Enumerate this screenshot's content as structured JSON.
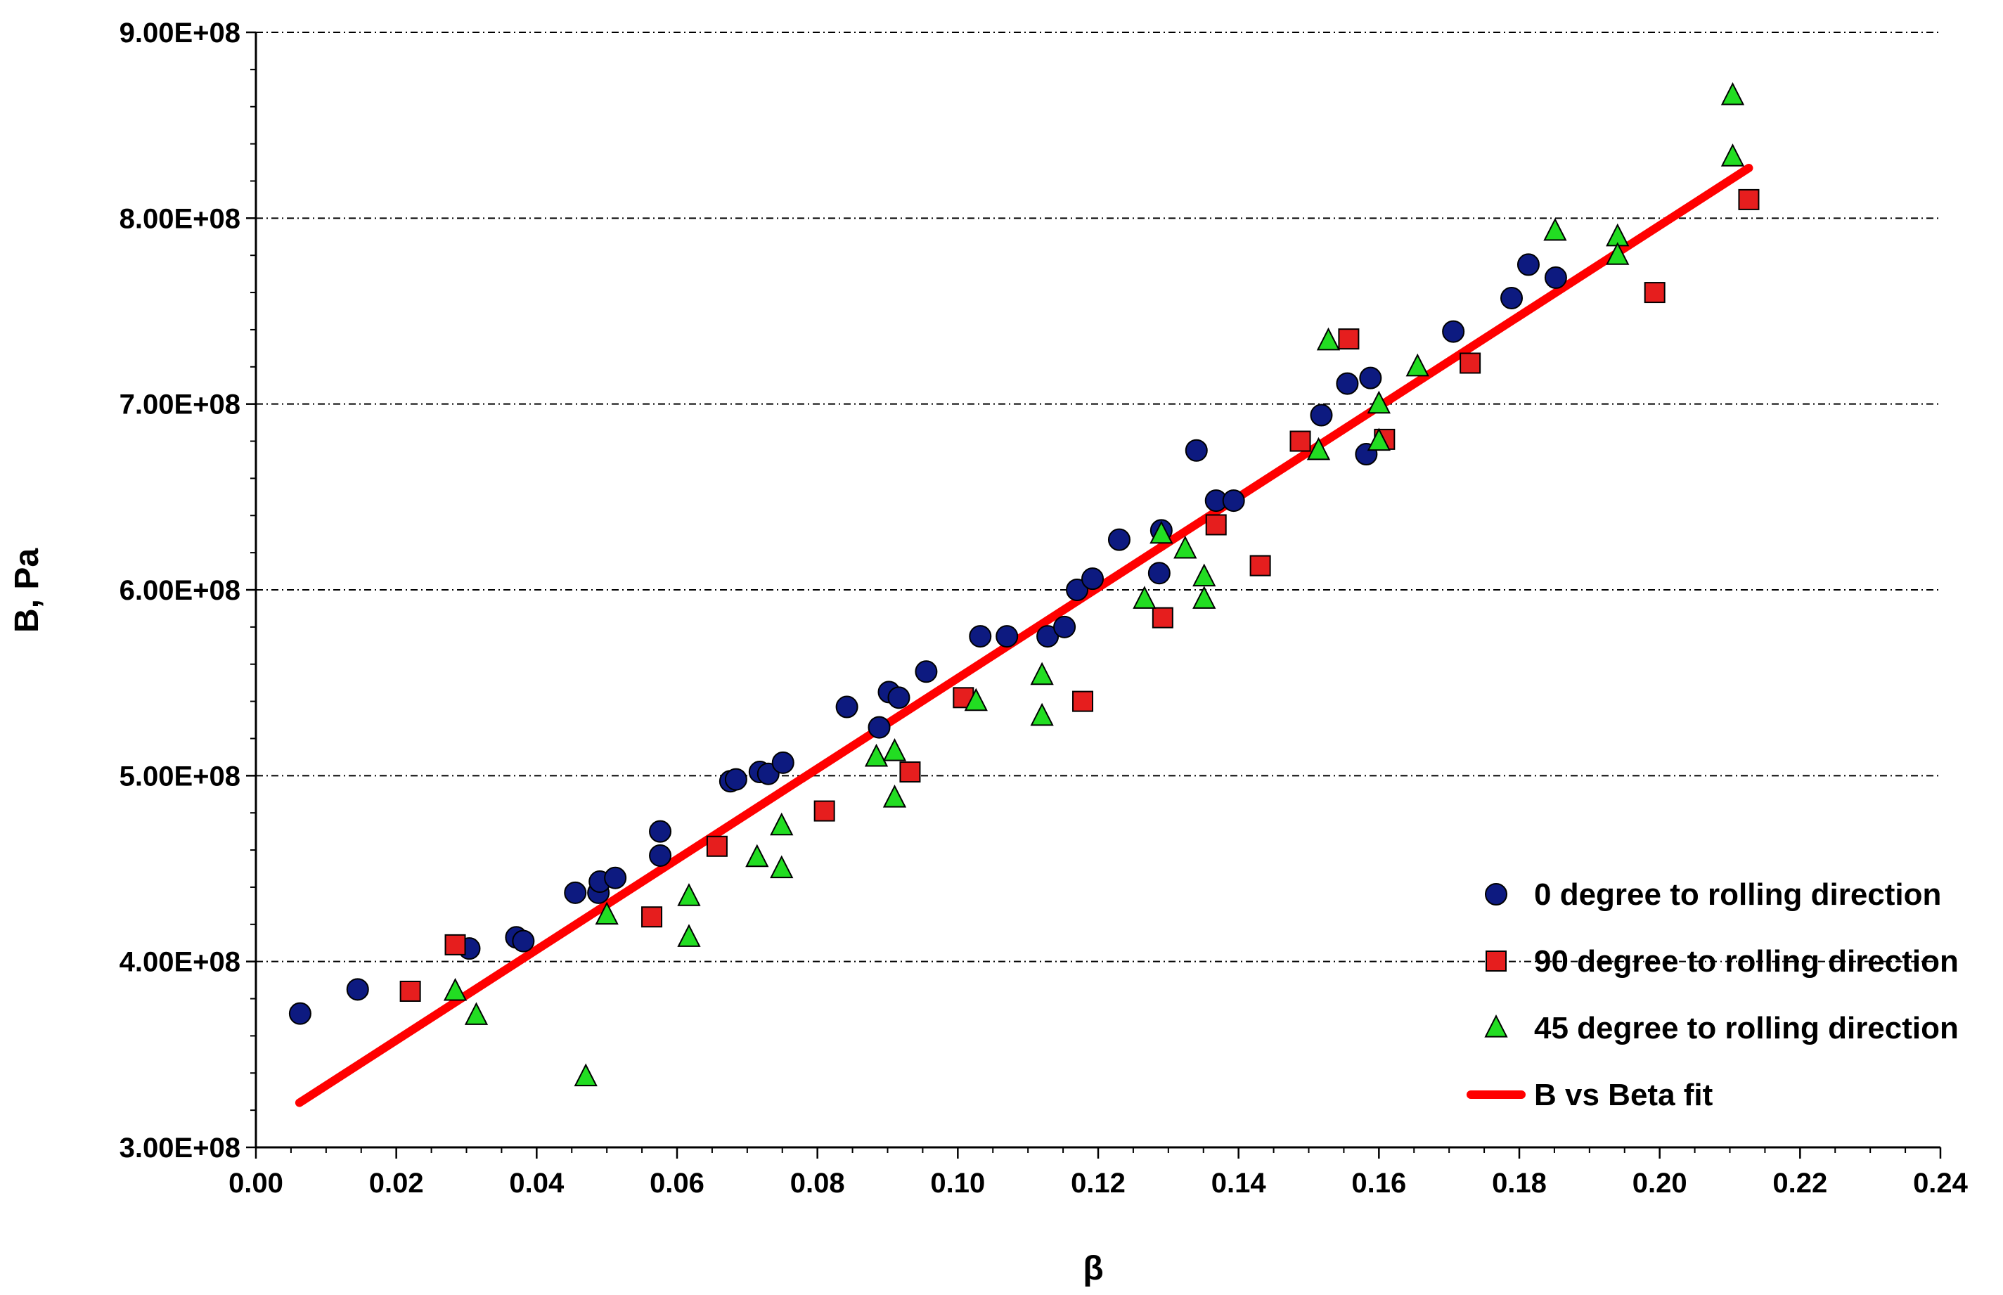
{
  "chart_data": {
    "type": "scatter",
    "title": "",
    "xlabel": "β",
    "ylabel": "B,  Pa",
    "xlim": [
      0,
      0.24
    ],
    "ylim": [
      300000000,
      900000000
    ],
    "x_ticks": [
      "0.00",
      "0.02",
      "0.04",
      "0.06",
      "0.08",
      "0.10",
      "0.12",
      "0.14",
      "0.16",
      "0.18",
      "0.20",
      "0.22",
      "0.24"
    ],
    "y_ticks": [
      "3.00E+08",
      "4.00E+08",
      "5.00E+08",
      "6.00E+08",
      "7.00E+08",
      "8.00E+08",
      "9.00E+08"
    ],
    "grid": "horizontal dashed",
    "legend_position": "bottom-right",
    "series": [
      {
        "name": "0 degree to rolling direction",
        "marker": "circle",
        "color": "#0d1a80",
        "points": [
          [
            0.0063,
            372000000
          ],
          [
            0.0145,
            385000000
          ],
          [
            0.0304,
            407000000
          ],
          [
            0.0371,
            413000000
          ],
          [
            0.0381,
            411000000
          ],
          [
            0.0455,
            437000000
          ],
          [
            0.0488,
            437000000
          ],
          [
            0.049,
            443000000
          ],
          [
            0.0512,
            445000000
          ],
          [
            0.0576,
            470000000
          ],
          [
            0.0576,
            457000000
          ],
          [
            0.0676,
            497000000
          ],
          [
            0.0684,
            498000000
          ],
          [
            0.0718,
            502000000
          ],
          [
            0.073,
            501000000
          ],
          [
            0.0751,
            507000000
          ],
          [
            0.0842,
            537000000
          ],
          [
            0.0888,
            526000000
          ],
          [
            0.0902,
            545000000
          ],
          [
            0.0916,
            542000000
          ],
          [
            0.0955,
            556000000
          ],
          [
            0.1032,
            575000000
          ],
          [
            0.107,
            575000000
          ],
          [
            0.1128,
            575000000
          ],
          [
            0.1152,
            580000000
          ],
          [
            0.117,
            600000000
          ],
          [
            0.1192,
            606000000
          ],
          [
            0.123,
            627000000
          ],
          [
            0.1287,
            609000000
          ],
          [
            0.129,
            632000000
          ],
          [
            0.134,
            675000000
          ],
          [
            0.1368,
            648000000
          ],
          [
            0.1393,
            648000000
          ],
          [
            0.1518,
            694000000
          ],
          [
            0.1555,
            711000000
          ],
          [
            0.1582,
            673000000
          ],
          [
            0.1588,
            714000000
          ],
          [
            0.1706,
            739000000
          ],
          [
            0.1789,
            757000000
          ],
          [
            0.1813,
            775000000
          ],
          [
            0.1852,
            768000000
          ]
        ]
      },
      {
        "name": "90 degree to rolling direction",
        "marker": "square",
        "color": "#e61e1e",
        "points": [
          [
            0.022,
            384000000
          ],
          [
            0.0284,
            409000000
          ],
          [
            0.0564,
            424000000
          ],
          [
            0.0657,
            462000000
          ],
          [
            0.081,
            481000000
          ],
          [
            0.0932,
            502000000
          ],
          [
            0.1008,
            542000000
          ],
          [
            0.1178,
            540000000
          ],
          [
            0.1292,
            585000000
          ],
          [
            0.1368,
            635000000
          ],
          [
            0.1431,
            613000000
          ],
          [
            0.1488,
            680000000
          ],
          [
            0.1557,
            735000000
          ],
          [
            0.1608,
            681000000
          ],
          [
            0.173,
            722000000
          ],
          [
            0.1993,
            760000000
          ],
          [
            0.2127,
            810000000
          ]
        ]
      },
      {
        "name": "45 degree to rolling direction",
        "marker": "triangle",
        "color": "#22dd22",
        "points": [
          [
            0.0284,
            384000000
          ],
          [
            0.0314,
            371000000
          ],
          [
            0.047,
            338000000
          ],
          [
            0.05,
            425000000
          ],
          [
            0.0617,
            435000000
          ],
          [
            0.0617,
            413000000
          ],
          [
            0.0714,
            456000000
          ],
          [
            0.0749,
            473000000
          ],
          [
            0.0749,
            450000000
          ],
          [
            0.0884,
            510000000
          ],
          [
            0.091,
            488000000
          ],
          [
            0.091,
            513000000
          ],
          [
            0.1026,
            540000000
          ],
          [
            0.112,
            554000000
          ],
          [
            0.112,
            532000000
          ],
          [
            0.1266,
            595000000
          ],
          [
            0.129,
            630000000
          ],
          [
            0.1324,
            622000000
          ],
          [
            0.1351,
            607000000
          ],
          [
            0.1351,
            595000000
          ],
          [
            0.1514,
            675000000
          ],
          [
            0.1528,
            734000000
          ],
          [
            0.16,
            700000000
          ],
          [
            0.16,
            680000000
          ],
          [
            0.1655,
            720000000
          ],
          [
            0.1851,
            793000000
          ],
          [
            0.194,
            790000000
          ],
          [
            0.194,
            780000000
          ],
          [
            0.2104,
            866000000
          ],
          [
            0.2104,
            833000000
          ]
        ]
      },
      {
        "name": "B vs Beta fit",
        "marker": "line",
        "color": "#ff0000",
        "points": [
          [
            0.0062,
            324000000
          ],
          [
            0.2127,
            827000000
          ]
        ]
      }
    ]
  }
}
